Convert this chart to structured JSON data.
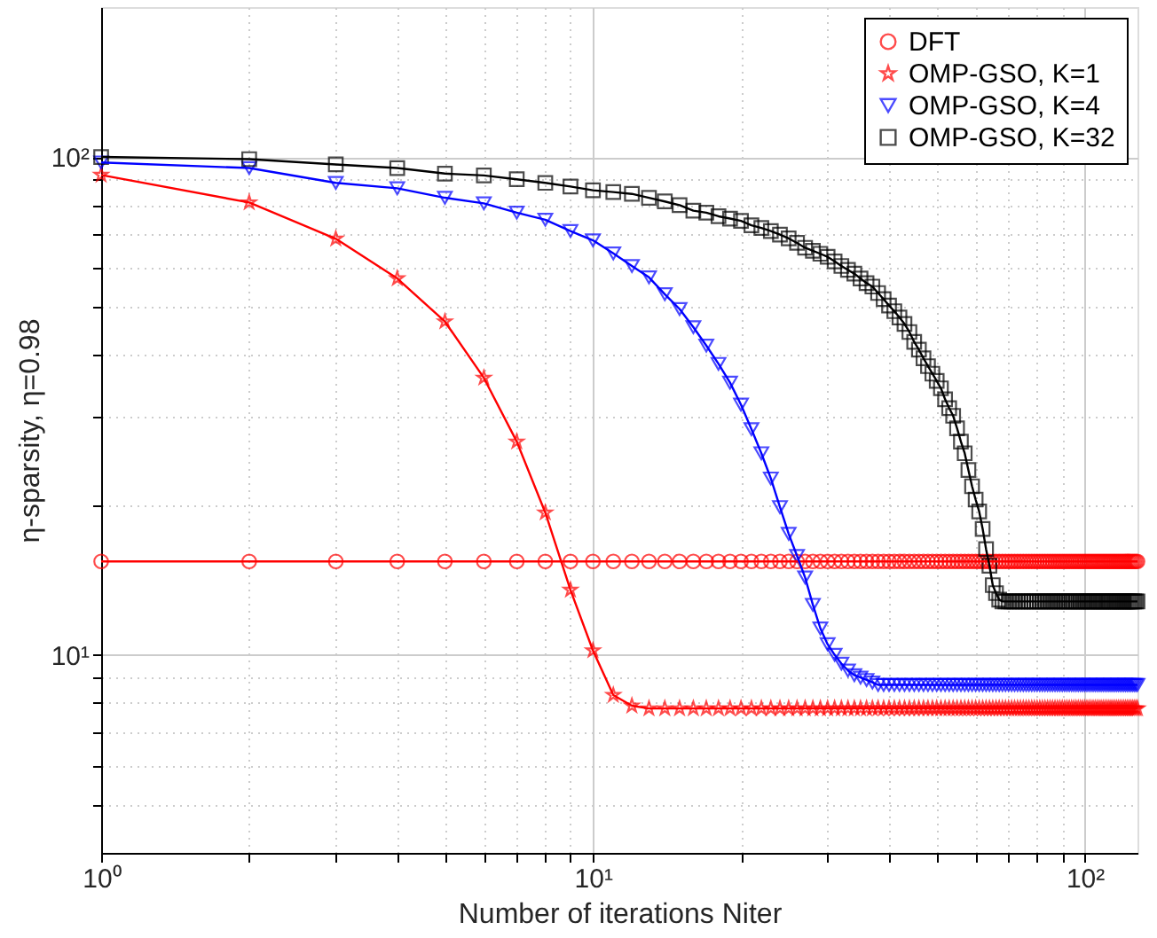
{
  "chart_data": {
    "type": "line",
    "xlabel": "Number of iterations Niter",
    "ylabel": "η-sparsity, η=0.98",
    "log": "xy",
    "grid": true,
    "legend": "top right",
    "line_style": "solid",
    "xlim": [
      1,
      128
    ],
    "ylim": [
      4,
      200
    ],
    "xticks": [
      {
        "value": 1,
        "label": "10⁰"
      },
      {
        "value": 2,
        "label": null
      },
      {
        "value": 3,
        "label": null
      },
      {
        "value": 4,
        "label": null
      },
      {
        "value": 5,
        "label": null
      },
      {
        "value": 6,
        "label": null
      },
      {
        "value": 7,
        "label": null
      },
      {
        "value": 8,
        "label": null
      },
      {
        "value": 9,
        "label": null
      },
      {
        "value": 10,
        "label": "10¹"
      },
      {
        "value": 20,
        "label": null
      },
      {
        "value": 30,
        "label": null
      },
      {
        "value": 40,
        "label": null
      },
      {
        "value": 50,
        "label": null
      },
      {
        "value": 60,
        "label": null
      },
      {
        "value": 70,
        "label": null
      },
      {
        "value": 80,
        "label": null
      },
      {
        "value": 90,
        "label": null
      },
      {
        "value": 100,
        "label": "10²"
      }
    ],
    "yticks": [
      {
        "value": 5,
        "label": null
      },
      {
        "value": 6,
        "label": null
      },
      {
        "value": 7,
        "label": null
      },
      {
        "value": 8,
        "label": null
      },
      {
        "value": 9,
        "label": null
      },
      {
        "value": 10,
        "label": "10¹"
      },
      {
        "value": 20,
        "label": null
      },
      {
        "value": 30,
        "label": null
      },
      {
        "value": 40,
        "label": null
      },
      {
        "value": 50,
        "label": null
      },
      {
        "value": 60,
        "label": null
      },
      {
        "value": 70,
        "label": null
      },
      {
        "value": 80,
        "label": null
      },
      {
        "value": 90,
        "label": null
      },
      {
        "value": 100,
        "label": "10²"
      }
    ],
    "x": [
      1,
      2,
      3,
      4,
      5,
      6,
      7,
      8,
      9,
      10,
      11,
      12,
      13,
      14,
      15,
      16,
      17,
      18,
      19,
      20,
      21,
      22,
      23,
      24,
      25,
      26,
      27,
      28,
      29,
      30,
      31,
      32,
      33,
      34,
      35,
      36,
      37,
      38,
      39,
      40,
      41,
      42,
      43,
      44,
      45,
      46,
      47,
      48,
      49,
      50,
      51,
      52,
      53,
      54,
      55,
      56,
      57,
      58,
      59,
      60,
      61,
      62,
      63,
      64,
      65,
      66,
      67,
      68,
      69,
      70,
      71,
      72,
      73,
      74,
      75,
      76,
      77,
      78,
      79,
      80,
      81,
      82,
      83,
      84,
      85,
      86,
      87,
      88,
      89,
      90,
      91,
      92,
      93,
      94,
      95,
      96,
      97,
      98,
      99,
      100,
      101,
      102,
      103,
      104,
      105,
      106,
      107,
      108,
      109,
      110,
      111,
      112,
      113,
      114,
      115,
      116,
      117,
      118,
      119,
      120,
      121,
      122,
      123,
      124,
      125,
      126,
      127,
      128
    ],
    "series": [
      {
        "name": "DFT",
        "color": "#ff0000",
        "marker": "circle",
        "values": [
          15.4,
          15.4,
          15.4,
          15.4,
          15.4,
          15.4,
          15.4,
          15.4,
          15.4,
          15.4,
          15.4,
          15.4,
          15.4,
          15.4,
          15.4,
          15.4,
          15.4,
          15.4,
          15.4,
          15.4,
          15.4,
          15.4,
          15.4,
          15.4,
          15.4,
          15.4,
          15.4,
          15.4,
          15.4,
          15.4,
          15.4,
          15.4,
          15.4,
          15.4,
          15.4,
          15.4,
          15.4,
          15.4,
          15.4,
          15.4,
          15.4,
          15.4,
          15.4,
          15.4,
          15.4,
          15.4,
          15.4,
          15.4,
          15.4,
          15.4,
          15.4,
          15.4,
          15.4,
          15.4,
          15.4,
          15.4,
          15.4,
          15.4,
          15.4,
          15.4,
          15.4,
          15.4,
          15.4,
          15.4,
          15.4,
          15.4,
          15.4,
          15.4,
          15.4,
          15.4,
          15.4,
          15.4,
          15.4,
          15.4,
          15.4,
          15.4,
          15.4,
          15.4,
          15.4,
          15.4,
          15.4,
          15.4,
          15.4,
          15.4,
          15.4,
          15.4,
          15.4,
          15.4,
          15.4,
          15.4,
          15.4,
          15.4,
          15.4,
          15.4,
          15.4,
          15.4,
          15.4,
          15.4,
          15.4,
          15.4,
          15.4,
          15.4,
          15.4,
          15.4,
          15.4,
          15.4,
          15.4,
          15.4,
          15.4,
          15.4,
          15.4,
          15.4,
          15.4,
          15.4,
          15.4,
          15.4,
          15.4,
          15.4,
          15.4,
          15.4,
          15.4,
          15.4,
          15.4,
          15.4,
          15.4,
          15.4,
          15.4,
          15.4
        ]
      },
      {
        "name": "OMP-GSO, K=1",
        "color": "#ff0000",
        "marker": "star",
        "values": [
          92,
          81,
          68.5,
          57,
          46.7,
          36,
          26.8,
          19.3,
          13.5,
          10.2,
          8.3,
          7.9,
          7.8,
          7.8,
          7.8,
          7.8,
          7.8,
          7.8,
          7.8,
          7.8,
          7.8,
          7.8,
          7.8,
          7.8,
          7.8,
          7.8,
          7.8,
          7.8,
          7.8,
          7.8,
          7.8,
          7.8,
          7.8,
          7.8,
          7.8,
          7.8,
          7.8,
          7.8,
          7.8,
          7.8,
          7.8,
          7.8,
          7.8,
          7.8,
          7.8,
          7.8,
          7.8,
          7.8,
          7.8,
          7.8,
          7.8,
          7.8,
          7.8,
          7.8,
          7.8,
          7.8,
          7.8,
          7.8,
          7.8,
          7.8,
          7.8,
          7.8,
          7.8,
          7.8,
          7.8,
          7.8,
          7.8,
          7.8,
          7.8,
          7.8,
          7.8,
          7.8,
          7.8,
          7.8,
          7.8,
          7.8,
          7.8,
          7.8,
          7.8,
          7.8,
          7.8,
          7.8,
          7.8,
          7.8,
          7.8,
          7.8,
          7.8,
          7.8,
          7.8,
          7.8,
          7.8,
          7.8,
          7.8,
          7.8,
          7.8,
          7.8,
          7.8,
          7.8,
          7.8,
          7.8,
          7.8,
          7.8,
          7.8,
          7.8,
          7.8,
          7.8,
          7.8,
          7.8,
          7.8,
          7.8,
          7.8,
          7.8,
          7.8,
          7.8,
          7.8,
          7.8,
          7.8,
          7.8,
          7.8,
          7.8,
          7.8,
          7.8,
          7.8,
          7.8,
          7.8,
          7.8,
          7.8,
          7.8
        ]
      },
      {
        "name": "OMP-GSO, K=4",
        "color": "#0000ff",
        "marker": "triangle",
        "values": [
          97.5,
          95,
          88.7,
          86.5,
          82.8,
          80.7,
          77.3,
          74.8,
          71,
          68,
          64,
          60.4,
          57.3,
          53,
          49.5,
          45.5,
          41.8,
          38.4,
          35.2,
          31.8,
          28.4,
          25.4,
          22.6,
          19.8,
          17.5,
          15.8,
          14.3,
          12.6,
          11.3,
          10.5,
          10,
          9.6,
          9.3,
          9.1,
          9,
          8.9,
          8.8,
          8.7,
          8.7,
          8.7,
          8.7,
          8.7,
          8.7,
          8.7,
          8.7,
          8.7,
          8.7,
          8.7,
          8.7,
          8.7,
          8.7,
          8.7,
          8.7,
          8.7,
          8.7,
          8.7,
          8.7,
          8.7,
          8.7,
          8.7,
          8.7,
          8.7,
          8.7,
          8.7,
          8.7,
          8.7,
          8.7,
          8.7,
          8.7,
          8.7,
          8.7,
          8.7,
          8.7,
          8.7,
          8.7,
          8.7,
          8.7,
          8.7,
          8.7,
          8.7,
          8.7,
          8.7,
          8.7,
          8.7,
          8.7,
          8.7,
          8.7,
          8.7,
          8.7,
          8.7,
          8.7,
          8.7,
          8.7,
          8.7,
          8.7,
          8.7,
          8.7,
          8.7,
          8.7,
          8.7,
          8.7,
          8.7,
          8.7,
          8.7,
          8.7,
          8.7,
          8.7,
          8.7,
          8.7,
          8.7,
          8.7,
          8.7,
          8.7,
          8.7,
          8.7,
          8.7,
          8.7,
          8.7,
          8.7,
          8.7,
          8.7,
          8.7,
          8.7,
          8.7,
          8.7,
          8.7,
          8.7,
          8.7
        ]
      },
      {
        "name": "OMP-GSO, K=32",
        "color": "#000000",
        "marker": "square",
        "values": [
          100,
          99,
          96.6,
          95,
          92.6,
          91.8,
          90.2,
          88.7,
          87.2,
          85.7,
          85,
          84.3,
          82.8,
          81.4,
          80,
          78,
          77.3,
          76,
          75.2,
          74.4,
          72.9,
          72,
          71,
          69.8,
          68.6,
          67.2,
          65.7,
          64.8,
          63.9,
          63,
          61.7,
          60.4,
          59.3,
          58.3,
          57,
          55.8,
          54.9,
          53.3,
          51.8,
          50.3,
          49,
          47.6,
          46.2,
          44.5,
          42.5,
          41,
          39.4,
          38,
          36.7,
          35.5,
          34.3,
          32.6,
          31.3,
          30.2,
          28.5,
          26.8,
          25.4,
          23.5,
          21.8,
          20.5,
          19.4,
          17.9,
          16.3,
          15.1,
          13.8,
          13.3,
          12.9,
          12.8,
          12.8,
          12.8,
          12.8,
          12.8,
          12.8,
          12.8,
          12.8,
          12.8,
          12.8,
          12.8,
          12.8,
          12.8,
          12.8,
          12.8,
          12.8,
          12.8,
          12.8,
          12.8,
          12.8,
          12.8,
          12.8,
          12.8,
          12.8,
          12.8,
          12.8,
          12.8,
          12.8,
          12.8,
          12.8,
          12.8,
          12.8,
          12.8,
          12.8,
          12.8,
          12.8,
          12.8,
          12.8,
          12.8,
          12.8,
          12.8,
          12.8,
          12.8,
          12.8,
          12.8,
          12.8,
          12.8,
          12.8,
          12.8,
          12.8,
          12.8,
          12.8,
          12.8,
          12.8,
          12.8,
          12.8,
          12.8,
          12.8,
          12.8,
          12.8,
          12.8
        ]
      }
    ]
  }
}
